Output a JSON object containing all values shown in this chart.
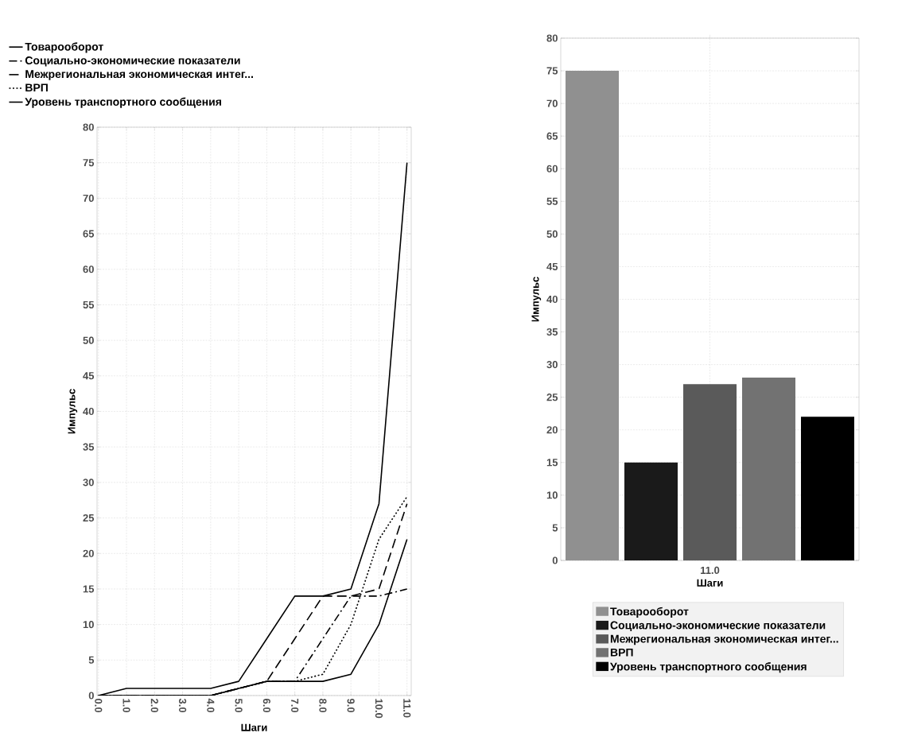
{
  "chart_data": [
    {
      "type": "line",
      "xlabel": "Шаги",
      "ylabel": "Импульс",
      "categories": [
        "0.0",
        "1.0",
        "2.0",
        "3.0",
        "4.0",
        "5.0",
        "6.0",
        "7.0",
        "8.0",
        "9.0",
        "10.0",
        "11.0"
      ],
      "series": [
        {
          "name": "Товарооборот",
          "color": "#000000",
          "line_style": "solid",
          "values": [
            0,
            1,
            1,
            1,
            1,
            2,
            8,
            14,
            14,
            15,
            27,
            75
          ]
        },
        {
          "name": "Социально-экономические показатели",
          "color": "#000000",
          "line_style": "dashdot",
          "values": [
            0,
            0,
            0,
            0,
            0,
            1,
            2,
            2,
            8,
            14,
            14,
            15
          ]
        },
        {
          "name": "Межрегиональная экономическая интег...",
          "color": "#000000",
          "line_style": "dashed",
          "values": [
            0,
            0,
            0,
            0,
            0,
            1,
            2,
            8,
            14,
            14,
            15,
            27
          ]
        },
        {
          "name": "ВРП",
          "color": "#000000",
          "line_style": "dotted",
          "values": [
            0,
            0,
            0,
            0,
            0,
            1,
            2,
            2,
            3,
            10,
            22,
            28
          ]
        },
        {
          "name": "Уровень транспортного сообщения",
          "color": "#000000",
          "line_style": "solid",
          "values": [
            0,
            0,
            0,
            0,
            0,
            1,
            2,
            2,
            2,
            3,
            10,
            22
          ]
        }
      ],
      "ylim": [
        0,
        80
      ],
      "yticks": [
        0,
        5,
        10,
        15,
        20,
        25,
        30,
        35,
        40,
        45,
        50,
        55,
        60,
        65,
        70,
        75,
        80
      ],
      "grid": true,
      "legend": "top left"
    },
    {
      "type": "bar",
      "xlabel": "Шаги",
      "ylabel": "Импульс",
      "categories": [
        "11.0"
      ],
      "series": [
        {
          "name": "Товарооборот",
          "color": "#909090",
          "values": [
            75
          ]
        },
        {
          "name": "Социально-экономические показатели",
          "color": "#1a1a1a",
          "values": [
            15
          ]
        },
        {
          "name": "Межрегиональная экономическая интег...",
          "color": "#5a5a5a",
          "values": [
            27
          ]
        },
        {
          "name": "ВРП",
          "color": "#727272",
          "values": [
            28
          ]
        },
        {
          "name": "Уровень транспортного сообщения",
          "color": "#000000",
          "values": [
            22
          ]
        }
      ],
      "ylim": [
        0,
        80
      ],
      "yticks": [
        0,
        5,
        10,
        15,
        20,
        25,
        30,
        35,
        40,
        45,
        50,
        55,
        60,
        65,
        70,
        75,
        80
      ],
      "grid": true,
      "legend": "bottom"
    }
  ]
}
